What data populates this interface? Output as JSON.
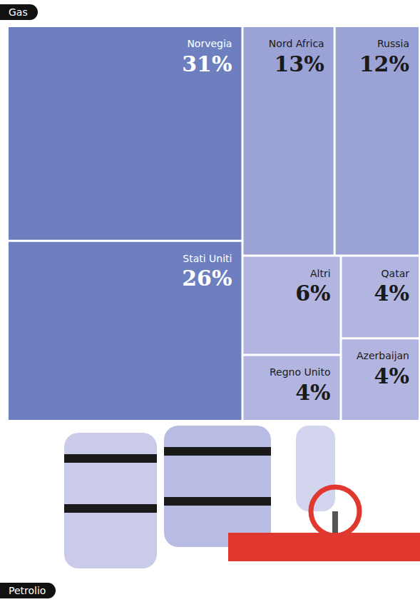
{
  "chart_data": {
    "type": "treemap",
    "title": "Gas",
    "annotations": [
      "Petrolio"
    ],
    "categories": [
      "Norvegia",
      "Stati Uniti",
      "Nord Africa",
      "Russia",
      "Altri",
      "Azerbaijan",
      "Qatar",
      "Regno Unito"
    ],
    "values": [
      31,
      26,
      13,
      12,
      6,
      4,
      4,
      4
    ],
    "value_labels": [
      "31%",
      "26%",
      "13%",
      "12%",
      "6%",
      "4%",
      "4%",
      "4%"
    ],
    "colors": [
      "#6e7fc0",
      "#6e7fc0",
      "#9ba3d6",
      "#9ba3d6",
      "#b1b5e0",
      "#b1b5e0",
      "#b1b5e0",
      "#b1b5e0"
    ],
    "data_labels": true
  }
}
